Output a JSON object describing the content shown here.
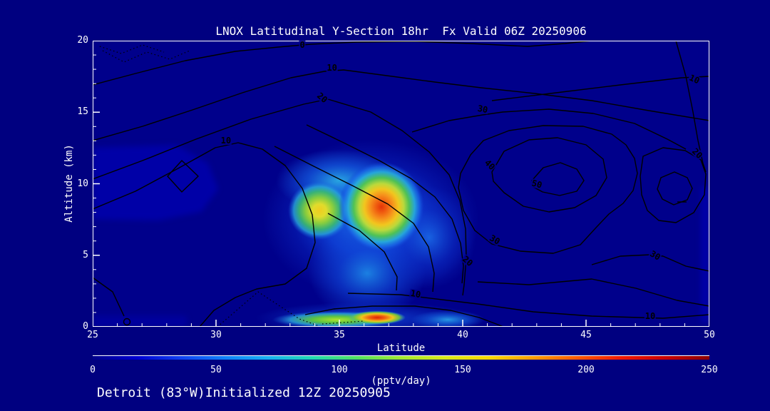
{
  "colors": {
    "page_background": "#000080",
    "plot_background": "#00008B",
    "text": "#FFFFFF",
    "contour_line": "#000000",
    "frame": "#FFFFFF"
  },
  "figure": {
    "title": "LNOX Latitudinal Y-Section 18hr  Fx Valid 06Z 20250906",
    "footer": "Detroit (83°W)Initialized 12Z 20250905"
  },
  "chart_data": {
    "type": "heatmap",
    "variant": "filled contour latitude-height cross-section with overlaid black line contours",
    "title": "LNOX Latitudinal Y-Section 18hr  Fx Valid 06Z 20250906",
    "xlabel": "Latitude",
    "ylabel": "Altitude (km)",
    "xlim": [
      25,
      50
    ],
    "ylim": [
      0,
      20
    ],
    "x_major_ticks": [
      25,
      30,
      35,
      40,
      45,
      50
    ],
    "x_minor_step": 1,
    "y_major_ticks": [
      0,
      5,
      10,
      15,
      20
    ],
    "y_minor_step": 1,
    "grid": false,
    "colorbar": {
      "label": "(pptv/day)",
      "ticks": [
        0,
        50,
        100,
        150,
        200,
        250
      ],
      "min": 0,
      "max": 250,
      "palette": "jet",
      "colors": [
        "#00008B",
        "#0000D0",
        "#1040F0",
        "#1080F8",
        "#18B0F0",
        "#20D8B0",
        "#50E060",
        "#A0E830",
        "#D8E818",
        "#F8D800",
        "#FF9C00",
        "#FF5800",
        "#F01800",
        "#C80000",
        "#8B0000"
      ]
    },
    "line_contour_levels": [
      0,
      10,
      20,
      30,
      40,
      50
    ],
    "negative_contours_style": "dotted",
    "features": [
      {
        "name": "primary mid-level LNOX maximum",
        "lat": 36.7,
        "altitude_km": 8.3,
        "value_pptv_day": 230
      },
      {
        "name": "secondary mid-level maximum",
        "lat": 34.2,
        "altitude_km": 8.1,
        "value_pptv_day": 160
      },
      {
        "name": "near-surface maximum",
        "lat": 36.5,
        "altitude_km": 0.5,
        "value_pptv_day": 235
      },
      {
        "name": "near-surface secondary blob",
        "lat": 39.3,
        "altitude_km": 0.5,
        "value_pptv_day": 85
      },
      {
        "name": "weak elevated patch",
        "lat": 27.5,
        "altitude_km": 10.5,
        "value_pptv_day": 40
      }
    ],
    "contour_labels": [
      {
        "value": "0",
        "lat": 33.5,
        "km": 19.7,
        "rot": 0
      },
      {
        "value": "10",
        "lat": 34.7,
        "km": 18.1,
        "rot": 0
      },
      {
        "value": "20",
        "lat": 34.3,
        "km": 16.0,
        "rot": 40
      },
      {
        "value": "10",
        "lat": 30.4,
        "km": 13.0,
        "rot": 0
      },
      {
        "value": "10",
        "lat": 49.4,
        "km": 17.3,
        "rot": 25
      },
      {
        "value": "30",
        "lat": 40.8,
        "km": 15.2,
        "rot": 10
      },
      {
        "value": "40",
        "lat": 41.1,
        "km": 11.3,
        "rot": 45
      },
      {
        "value": "50",
        "lat": 43.0,
        "km": 10.0,
        "rot": 15
      },
      {
        "value": "20",
        "lat": 49.5,
        "km": 12.1,
        "rot": 45
      },
      {
        "value": "30",
        "lat": 41.3,
        "km": 6.1,
        "rot": 30
      },
      {
        "value": "30",
        "lat": 47.8,
        "km": 5.0,
        "rot": 30
      },
      {
        "value": "20",
        "lat": 40.2,
        "km": 4.6,
        "rot": 40
      },
      {
        "value": "10",
        "lat": 38.1,
        "km": 2.3,
        "rot": 10
      },
      {
        "value": "10",
        "lat": 47.6,
        "km": 0.75,
        "rot": 0
      }
    ]
  }
}
